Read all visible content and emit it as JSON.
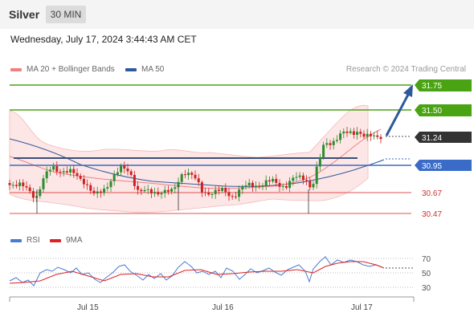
{
  "header": {
    "title": "Silver",
    "timeframe": "30 MIN"
  },
  "datetime": "Wednesday, July 17, 2024 3:44:43 AM CET",
  "legend": {
    "ma20": {
      "label": "MA 20 + Bollinger Bands",
      "color": "#f08080"
    },
    "ma50": {
      "label": "MA 50",
      "color": "#2e5a9c"
    }
  },
  "research": "Research © 2024 Trading Central",
  "levels": {
    "r2": "31.75",
    "r1": "31.50",
    "last": "31.24",
    "pivot": "30.95",
    "s1": "30.67",
    "s2": "30.47"
  },
  "rsi_legend": {
    "rsi": {
      "label": "RSI",
      "color": "#4a7bd4"
    },
    "ma9": {
      "label": "9MA",
      "color": "#d22"
    }
  },
  "rsi_ticks": [
    "70",
    "50",
    "30"
  ],
  "x_labels": [
    "Jul 15",
    "Jul 16",
    "Jul 17"
  ],
  "colors": {
    "up": "#2e8b2e",
    "down": "#cc2222",
    "resistance": "#4aa312",
    "pivot": "#3a6bc8",
    "support": "#e05050",
    "last": "#333333",
    "arrow": "#2e5a9c"
  }
}
